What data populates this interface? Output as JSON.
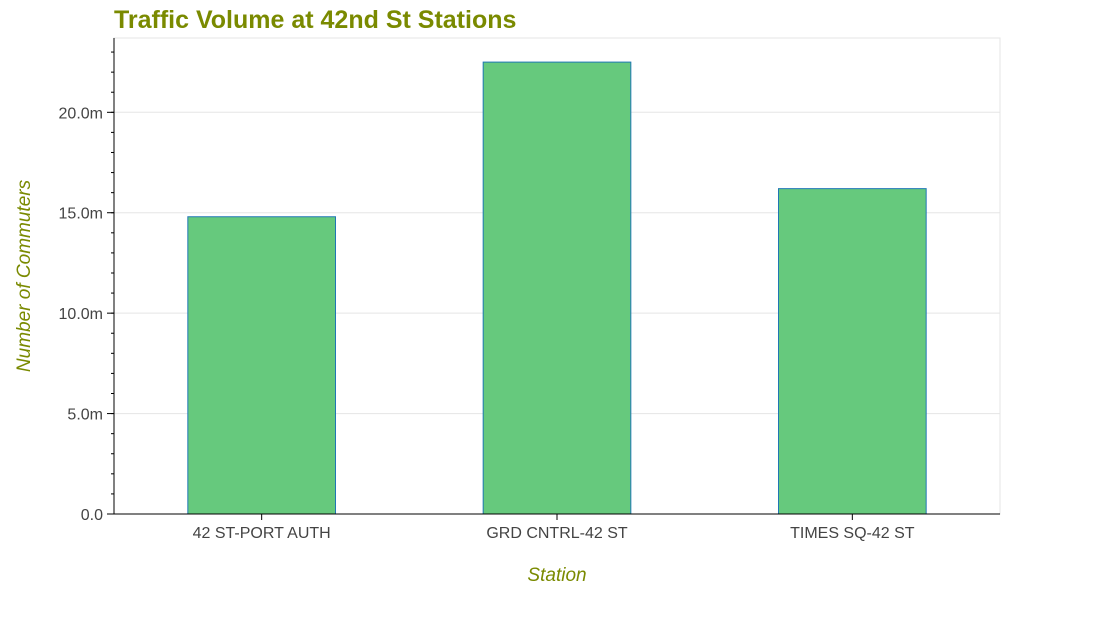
{
  "chart_data": {
    "type": "bar",
    "title": "Traffic Volume at 42nd St Stations",
    "xlabel": "Station",
    "ylabel": "Number of Commuters",
    "categories": [
      "42 ST-PORT AUTH",
      "GRD CNTRL-42 ST",
      "TIMES SQ-42 ST"
    ],
    "values": [
      14800000,
      22500000,
      16200000
    ],
    "ylim": [
      0,
      23700000
    ],
    "yticks": [
      0,
      5000000,
      10000000,
      15000000,
      20000000
    ],
    "ytick_labels": [
      "0.0",
      "5.0m",
      "10.0m",
      "15.0m",
      "20.0m"
    ],
    "grid": true,
    "legend": "none",
    "colors": {
      "bar_fill": "#66c97d",
      "bar_stroke": "#1f77b4",
      "title": "#7a8a00",
      "axis_label": "#7a8a00",
      "grid": "#e5e5e5",
      "axis": "#000000",
      "tick_text": "#444444"
    }
  }
}
